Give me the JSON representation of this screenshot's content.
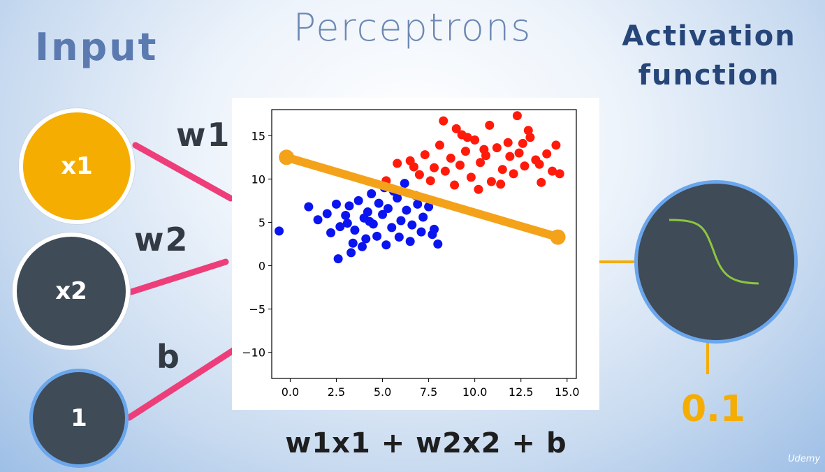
{
  "title": "Perceptrons",
  "input_label": "Input",
  "activation_label": [
    "Activation",
    "function"
  ],
  "inputs": [
    {
      "label": "x1",
      "weight": "w1",
      "color": "#f4ad00"
    },
    {
      "label": "x2",
      "weight": "w2",
      "color": "#3f4b57"
    },
    {
      "label": "1",
      "weight": "b",
      "color": "#3f4b57"
    }
  ],
  "formula": "w1x1 + w2x2 + b",
  "output_value": "0.1",
  "brand": "Udemy",
  "colors": {
    "accent": "#f4ad00",
    "connection": "#ee3e7a",
    "node_dark": "#3f4b57",
    "node_border": "#6aa6ec",
    "sigmoid": "#8cc63f"
  },
  "chart_data": {
    "type": "scatter",
    "xlim": [
      -1,
      15.5
    ],
    "ylim": [
      -13,
      18
    ],
    "xticks": [
      "0.0",
      "2.5",
      "5.0",
      "7.5",
      "10.0",
      "12.5",
      "15.0"
    ],
    "xtick_values": [
      0,
      2.5,
      5,
      7.5,
      10,
      12.5,
      15
    ],
    "yticks": [
      "15",
      "10",
      "5",
      "0",
      "−5",
      "−10"
    ],
    "ytick_values": [
      15,
      10,
      5,
      0,
      -5,
      -10
    ],
    "series": [
      {
        "color": "#0a14f0",
        "points": [
          [
            -0.6,
            4
          ],
          [
            1,
            6.8
          ],
          [
            1.5,
            5.3
          ],
          [
            2,
            6
          ],
          [
            2.5,
            7.1
          ],
          [
            2.2,
            3.8
          ],
          [
            2.7,
            4.5
          ],
          [
            3,
            5.8
          ],
          [
            3.2,
            6.9
          ],
          [
            3.5,
            4.1
          ],
          [
            3.7,
            7.5
          ],
          [
            4,
            5.5
          ],
          [
            4.2,
            6.2
          ],
          [
            4.5,
            4.8
          ],
          [
            4.8,
            7.2
          ],
          [
            5,
            5.9
          ],
          [
            5.3,
            6.6
          ],
          [
            5.5,
            4.4
          ],
          [
            5.8,
            7.8
          ],
          [
            6,
            5.2
          ],
          [
            6.3,
            6.4
          ],
          [
            6.6,
            4.7
          ],
          [
            6.9,
            7.1
          ],
          [
            7.2,
            5.6
          ],
          [
            7.5,
            6.8
          ],
          [
            7.8,
            4.2
          ],
          [
            8,
            2.5
          ],
          [
            3.4,
            2.6
          ],
          [
            4.1,
            3.1
          ],
          [
            4.7,
            3.4
          ],
          [
            5.9,
            3.3
          ],
          [
            6.5,
            2.8
          ],
          [
            7.7,
            3.6
          ],
          [
            5.1,
            9
          ],
          [
            6.2,
            9.5
          ],
          [
            4.4,
            8.3
          ],
          [
            3.9,
            2.2
          ],
          [
            2.6,
            0.8
          ],
          [
            3.3,
            1.5
          ],
          [
            5.6,
            8.6
          ],
          [
            6.8,
            8.1
          ],
          [
            7.1,
            3.9
          ],
          [
            5.2,
            2.4
          ],
          [
            4.3,
            5.1
          ],
          [
            3.1,
            4.9
          ]
        ]
      },
      {
        "color": "#ff1a0a",
        "points": [
          [
            5.2,
            9.8
          ],
          [
            5.8,
            11.8
          ],
          [
            6.5,
            12.1
          ],
          [
            7,
            10.5
          ],
          [
            7.3,
            12.8
          ],
          [
            7.8,
            11.3
          ],
          [
            8.1,
            13.9
          ],
          [
            8.4,
            10.9
          ],
          [
            8.7,
            12.4
          ],
          [
            9,
            15.8
          ],
          [
            9.2,
            11.6
          ],
          [
            9.5,
            13.2
          ],
          [
            9.8,
            10.2
          ],
          [
            10,
            14.5
          ],
          [
            10.3,
            11.9
          ],
          [
            10.6,
            12.7
          ],
          [
            10.9,
            9.7
          ],
          [
            11.2,
            13.6
          ],
          [
            11.5,
            11.1
          ],
          [
            11.8,
            14.2
          ],
          [
            12.1,
            10.6
          ],
          [
            12.4,
            13
          ],
          [
            12.7,
            11.5
          ],
          [
            13,
            14.8
          ],
          [
            13.3,
            12.2
          ],
          [
            13.6,
            9.6
          ],
          [
            13.9,
            12.9
          ],
          [
            14.2,
            10.9
          ],
          [
            14.6,
            10.6
          ],
          [
            14.4,
            13.9
          ],
          [
            12.3,
            17.3
          ],
          [
            8.3,
            16.7
          ],
          [
            9.6,
            14.8
          ],
          [
            10.8,
            16.2
          ],
          [
            11.4,
            9.4
          ],
          [
            12.9,
            15.6
          ],
          [
            7.6,
            9.8
          ],
          [
            6.7,
            11.4
          ],
          [
            8.9,
            9.3
          ],
          [
            10.2,
            8.8
          ],
          [
            11.9,
            12.6
          ],
          [
            9.3,
            15.1
          ],
          [
            10.5,
            13.4
          ],
          [
            12.6,
            14.1
          ],
          [
            13.5,
            11.7
          ]
        ]
      }
    ],
    "line": {
      "color": "#f4a21a",
      "x": [
        -0.2,
        14.5
      ],
      "y": [
        12.5,
        3.3
      ]
    }
  }
}
